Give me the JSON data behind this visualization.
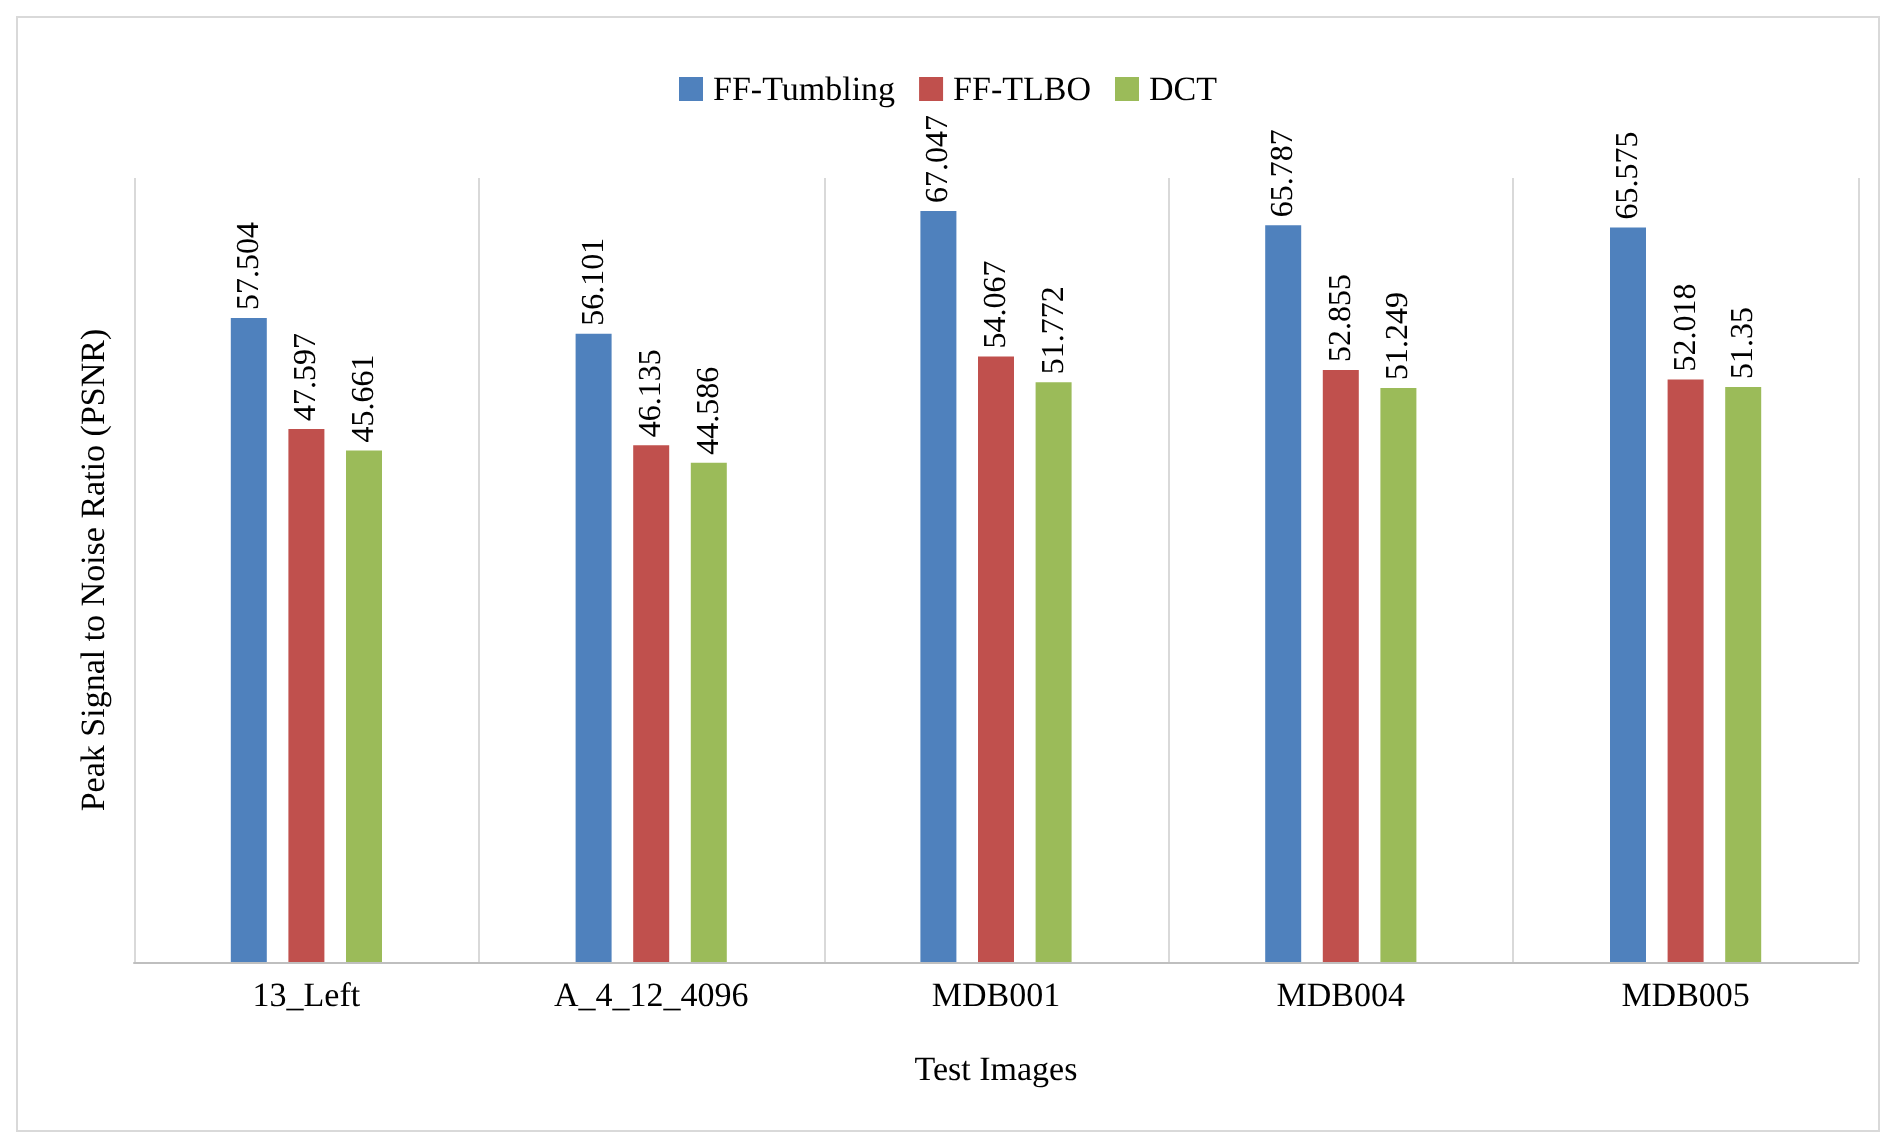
{
  "chart_data": {
    "type": "bar",
    "xlabel": "Test Images",
    "ylabel": "Peak Signal to Noise Ratio (PSNR)",
    "categories": [
      "13_Left",
      "A_4_12_4096",
      "MDB001",
      "MDB004",
      "MDB005"
    ],
    "series": [
      {
        "name": "FF-Tumbling",
        "color": "#4f81bd",
        "values": [
          57.504,
          56.101,
          67.047,
          65.787,
          65.575
        ]
      },
      {
        "name": "FF-TLBO",
        "color": "#c0504d",
        "values": [
          47.597,
          46.135,
          54.067,
          52.855,
          52.018
        ]
      },
      {
        "name": "DCT",
        "color": "#9bbb59",
        "values": [
          45.661,
          44.586,
          51.772,
          51.249,
          51.35
        ]
      }
    ],
    "data_labels": true,
    "grid": "x",
    "legend": "top",
    "tick_labels": "x"
  }
}
